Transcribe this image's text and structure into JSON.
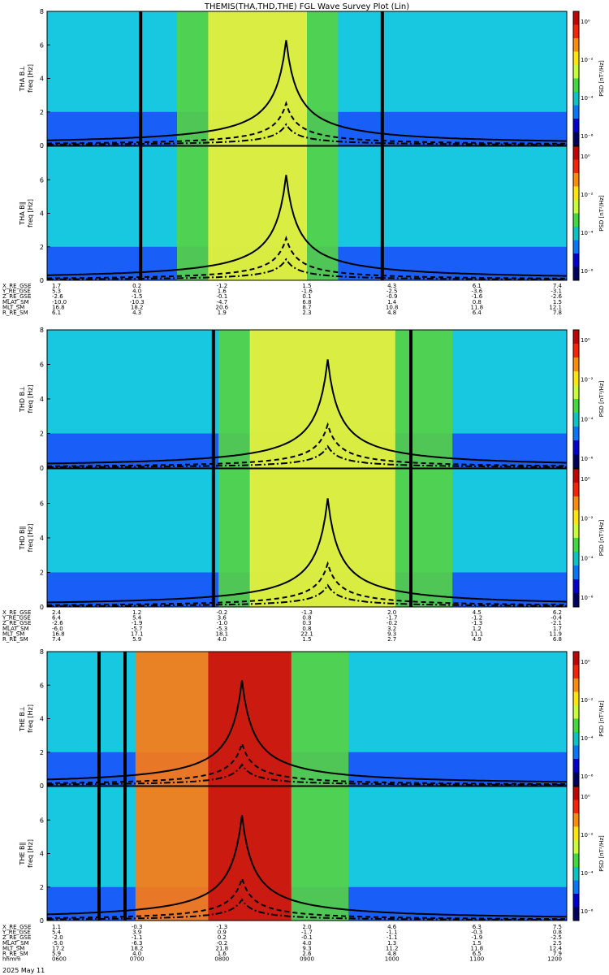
{
  "title": "THEMIS(THA,THD,THE) FGL Wave Survey Plot (Lin)",
  "colors": {
    "noise_blue": "#1a3cff",
    "noise_cyan": "#18c8e0",
    "noise_green": "#22c060",
    "wave_green": "#55d244",
    "wave_yellow": "#e8f040",
    "wave_orange": "#ff7a10",
    "wave_red": "#c81010",
    "curve": "#000000"
  },
  "colorbar": {
    "label": "PSD [nT²/Hz]",
    "ticks": [
      "10⁰",
      "10⁻²",
      "10⁻⁴",
      "10⁻⁶"
    ],
    "colors": [
      "#c80000",
      "#ff2000",
      "#ff8c00",
      "#ffe600",
      "#c8ff32",
      "#3cdc3c",
      "#00c8c8",
      "#0078ff",
      "#0000d2",
      "#000064"
    ]
  },
  "chart_data": [
    {
      "type": "heatmap",
      "probe": "THA",
      "component": "B⊥",
      "ylabel": "THA B⊥",
      "yunit": "freq [Hz]",
      "ylim": [
        0,
        8
      ],
      "yticks": [
        "0",
        "2",
        "4",
        "6",
        "8"
      ],
      "colorscale": "log PSD"
    },
    {
      "type": "heatmap",
      "probe": "THA",
      "component": "B∥",
      "ylabel": "THA B∥",
      "yunit": "freq [Hz]",
      "ylim": [
        0,
        8
      ],
      "yticks": [
        "0",
        "2",
        "4",
        "6"
      ],
      "colorscale": "log PSD"
    },
    {
      "type": "heatmap",
      "probe": "THD",
      "component": "B⊥",
      "ylabel": "THD B⊥",
      "yunit": "freq [Hz]",
      "ylim": [
        0,
        8
      ],
      "yticks": [
        "0",
        "2",
        "4",
        "6",
        "8"
      ],
      "colorscale": "log PSD"
    },
    {
      "type": "heatmap",
      "probe": "THD",
      "component": "B∥",
      "ylabel": "THD B∥",
      "yunit": "freq [Hz]",
      "ylim": [
        0,
        8
      ],
      "yticks": [
        "0",
        "2",
        "4",
        "6"
      ],
      "colorscale": "log PSD"
    },
    {
      "type": "heatmap",
      "probe": "THE",
      "component": "B⊥",
      "ylabel": "THE B⊥",
      "yunit": "freq [Hz]",
      "ylim": [
        0,
        8
      ],
      "yticks": [
        "0",
        "2",
        "4",
        "6",
        "8"
      ],
      "colorscale": "log PSD"
    },
    {
      "type": "heatmap",
      "probe": "THE",
      "component": "B∥",
      "ylabel": "THE B∥",
      "yunit": "freq [Hz]",
      "ylim": [
        0,
        8
      ],
      "yticks": [
        "0",
        "2",
        "4",
        "6"
      ],
      "colorscale": "log PSD"
    }
  ],
  "ephemeris": [
    {
      "rows": [
        {
          "label": "X_RE_GSE",
          "values": [
            "1.7",
            "0.2",
            "-1.2",
            "1.5",
            "4.3",
            "6.1",
            "7.4"
          ]
        },
        {
          "label": "Y_RE_GSE",
          "values": [
            "5.3",
            "4.0",
            "1.6",
            "-1.6",
            "-2.5",
            "-3.6",
            "-3.1"
          ]
        },
        {
          "label": "Z_RE_GSE",
          "values": [
            "-2.6",
            "-1.5",
            "-0.1",
            "0.1",
            "-0.9",
            "-1.6",
            "-2.6"
          ]
        },
        {
          "label": "MLAT_SM",
          "values": [
            "-10.0",
            "-10.3",
            "-4.7",
            "6.8",
            "1.4",
            "0.8",
            "1.5"
          ]
        },
        {
          "label": "MLT_SM",
          "values": [
            "16.8",
            "18.2",
            "20.6",
            "8.7",
            "10.8",
            "11.8",
            "12.1"
          ]
        },
        {
          "label": "R_RE_SM",
          "values": [
            "6.1",
            "4.3",
            "1.9",
            "2.3",
            "4.8",
            "6.4",
            "7.8"
          ]
        }
      ]
    },
    {
      "rows": [
        {
          "label": "X_RE_GSE",
          "values": [
            "2.4",
            "1.2",
            "-0.2",
            "-1.3",
            "2.0",
            "4.5",
            "6.2"
          ]
        },
        {
          "label": "Y_RE_GSE",
          "values": [
            "6.4",
            "5.4",
            "3.6",
            "0.8",
            "-1.7",
            "-1.2",
            "-0.4"
          ]
        },
        {
          "label": "Z_RE_GSE",
          "values": [
            "-2.6",
            "-1.9",
            "-1.0",
            "0.3",
            "-0.2",
            "-1.3",
            "-2.1"
          ]
        },
        {
          "label": "MLAT_SM",
          "values": [
            "-6.0",
            "-5.7",
            "-5.3",
            "0.8",
            "3.2",
            "1.2",
            "1.7"
          ]
        },
        {
          "label": "MLT_SM",
          "values": [
            "16.8",
            "17.1",
            "18.1",
            "22.1",
            "9.3",
            "11.1",
            "11.9"
          ]
        },
        {
          "label": "R_RE_SM",
          "values": [
            "7.4",
            "5.9",
            "4.0",
            "1.5",
            "2.7",
            "4.9",
            "6.8"
          ]
        }
      ]
    },
    {
      "rows": [
        {
          "label": "X_RE_GSE",
          "values": [
            "1.1",
            "-0.3",
            "-1.3",
            "2.0",
            "4.6",
            "6.3",
            "7.5"
          ]
        },
        {
          "label": "Y_RE_GSE",
          "values": [
            "5.4",
            "3.9",
            "0.9",
            "-1.7",
            "-1.1",
            "-0.3",
            "0.8"
          ]
        },
        {
          "label": "Z_RE_GSE",
          "values": [
            "-2.0",
            "-1.1",
            "0.2",
            "-0.1",
            "-1.1",
            "-1.9",
            "-2.5"
          ]
        },
        {
          "label": "MLAT_SM",
          "values": [
            "-5.0",
            "-6.3",
            "-0.2",
            "4.0",
            "1.3",
            "1.5",
            "2.5"
          ]
        },
        {
          "label": "MLT_SM",
          "values": [
            "17.2",
            "18.2",
            "21.8",
            "9.3",
            "11.2",
            "11.8",
            "12.4"
          ]
        },
        {
          "label": "R_RE_SM",
          "values": [
            "5.9",
            "4.0",
            "1.6",
            "2.6",
            "4.8",
            "6.5",
            "7.9"
          ]
        },
        {
          "label": "hhmm",
          "values": [
            "0600",
            "0700",
            "0800",
            "0900",
            "1000",
            "1100",
            "1200"
          ]
        }
      ]
    }
  ],
  "date": "2025 May 11"
}
